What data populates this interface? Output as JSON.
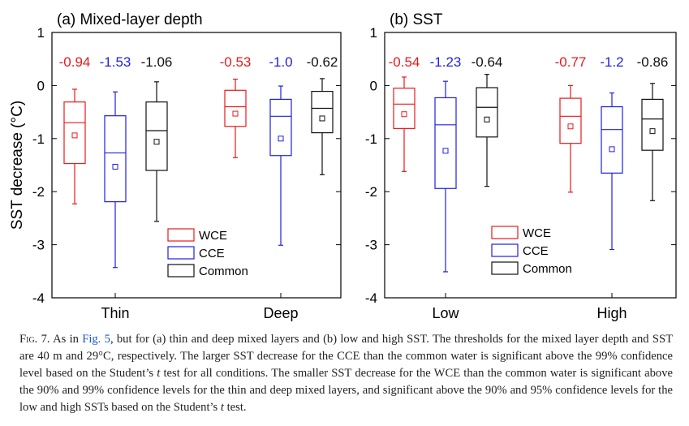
{
  "colors": {
    "WCE": "#e8191c",
    "CCE": "#1f1fe6",
    "Common": "#111111"
  },
  "chart_data": [
    {
      "type": "box",
      "title": "(a) Mixed-layer depth",
      "ylabel": "SST decrease (°C)",
      "ylim": [
        -4,
        1
      ],
      "yticks": [
        1,
        0,
        -1,
        -2,
        -3,
        -4
      ],
      "ytick_labels": [
        "1",
        "0",
        "-1",
        "-2",
        "-3",
        "-4"
      ],
      "categories": [
        "Thin",
        "Deep"
      ],
      "legend": [
        "WCE",
        "CCE",
        "Common"
      ],
      "legend_position": "bottom-right",
      "groups": [
        {
          "category": "Thin",
          "boxes": [
            {
              "series": "WCE",
              "min": -2.23,
              "q1": -1.47,
              "median": -0.7,
              "q3": -0.31,
              "max": -0.07,
              "mean": -0.94,
              "label": "-0.94"
            },
            {
              "series": "CCE",
              "min": -3.43,
              "q1": -2.19,
              "median": -1.27,
              "q3": -0.57,
              "max": -0.12,
              "mean": -1.53,
              "label": "-1.53"
            },
            {
              "series": "Common",
              "min": -2.56,
              "q1": -1.6,
              "median": -0.85,
              "q3": -0.31,
              "max": 0.07,
              "mean": -1.06,
              "label": "-1.06"
            }
          ]
        },
        {
          "category": "Deep",
          "boxes": [
            {
              "series": "WCE",
              "min": -1.36,
              "q1": -0.77,
              "median": -0.4,
              "q3": -0.09,
              "max": 0.12,
              "mean": -0.53,
              "label": "-0.53"
            },
            {
              "series": "CCE",
              "min": -3.01,
              "q1": -1.32,
              "median": -0.58,
              "q3": -0.26,
              "max": -0.01,
              "mean": -1.0,
              "label": "-1.0"
            },
            {
              "series": "Common",
              "min": -1.68,
              "q1": -0.89,
              "median": -0.43,
              "q3": -0.11,
              "max": 0.13,
              "mean": -0.62,
              "label": "-0.62"
            }
          ]
        }
      ]
    },
    {
      "type": "box",
      "title": "(b) SST",
      "ylim": [
        -4,
        1
      ],
      "yticks": [
        1,
        0,
        -1,
        -2,
        -3,
        -4
      ],
      "ytick_labels": [
        "1",
        "0",
        "-1",
        "-2",
        "-3",
        "-4"
      ],
      "categories": [
        "Low",
        "High"
      ],
      "legend": [
        "WCE",
        "CCE",
        "Common"
      ],
      "legend_position": "bottom-left",
      "groups": [
        {
          "category": "Low",
          "boxes": [
            {
              "series": "WCE",
              "min": -1.62,
              "q1": -0.81,
              "median": -0.35,
              "q3": -0.05,
              "max": 0.16,
              "mean": -0.54,
              "label": "-0.54"
            },
            {
              "series": "CCE",
              "min": -3.51,
              "q1": -1.94,
              "median": -0.74,
              "q3": -0.23,
              "max": 0.08,
              "mean": -1.23,
              "label": "-1.23"
            },
            {
              "series": "Common",
              "min": -1.9,
              "q1": -0.97,
              "median": -0.41,
              "q3": -0.04,
              "max": 0.21,
              "mean": -0.64,
              "label": "-0.64"
            }
          ]
        },
        {
          "category": "High",
          "boxes": [
            {
              "series": "WCE",
              "min": -2.01,
              "q1": -1.09,
              "median": -0.58,
              "q3": -0.24,
              "max": 0.0,
              "mean": -0.77,
              "label": "-0.77"
            },
            {
              "series": "CCE",
              "min": -3.09,
              "q1": -1.65,
              "median": -0.83,
              "q3": -0.4,
              "max": -0.14,
              "mean": -1.2,
              "label": "-1.2"
            },
            {
              "series": "Common",
              "min": -2.17,
              "q1": -1.22,
              "median": -0.63,
              "q3": -0.26,
              "max": 0.04,
              "mean": -0.86,
              "label": "-0.86"
            }
          ]
        }
      ]
    }
  ],
  "caption": {
    "label": "Fig. 7.",
    "text_before_link": "As in ",
    "link": "Fig. 5",
    "text_part1": ", but for (a) thin and deep mixed layers and (b) low and high SST. The thresholds for the mixed layer depth and SST are 40 m and 29°C, respectively. The larger SST decrease for the CCE than the common water is significant above the 99% confidence level based on the Student’s ",
    "italic_t1": "t",
    "text_part2": " test for all conditions. The smaller SST decrease for the WCE than the common water is significant above the 90% and 99% confidence levels for the thin and deep mixed layers, and significant above the 90% and 95% confidence levels for the low and high SSTs based on the Student’s ",
    "italic_t2": "t",
    "text_part3": " test."
  }
}
